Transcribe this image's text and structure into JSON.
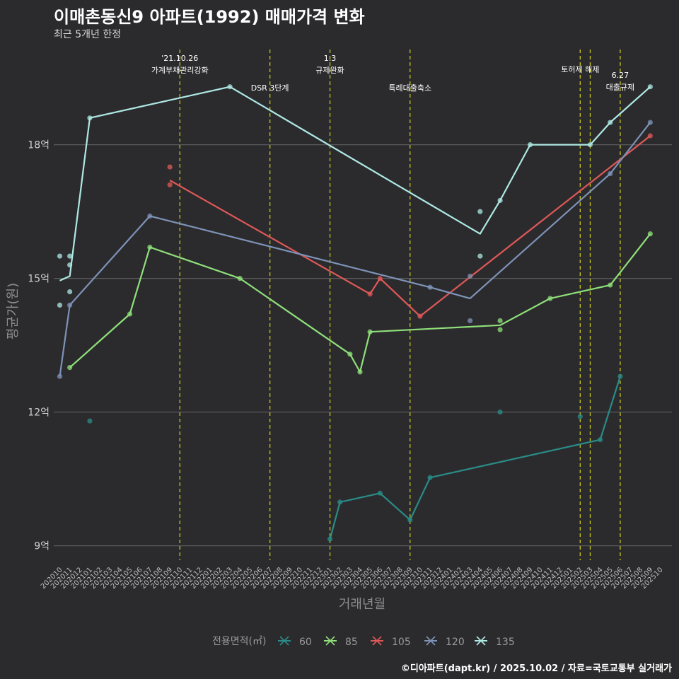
{
  "header": {
    "title": "이매촌동신9 아파트(1992) 매매가격 변화",
    "subtitle": "최근 5개년 한정"
  },
  "footer": {
    "caption": "©디아파트(dapt.kr) / 2025.10.02 / 자료=국토교통부 실거래가"
  },
  "colors": {
    "background": "#2b2b2d",
    "grid": "#5a5a5c",
    "vline": "#c8c820",
    "s60": "#2a8c88",
    "s85": "#8fe07a",
    "s105": "#e05858",
    "s120": "#7e93b8",
    "s135": "#aee8e4"
  },
  "chart_data": {
    "type": "line",
    "title": "이매촌동신9 아파트(1992) 매매가격 변화",
    "xlabel": "거래년월",
    "ylabel": "평균가(원)",
    "ylim": [
      8.6,
      19.9
    ],
    "y_ticks": [
      9,
      12,
      15,
      18
    ],
    "y_tick_labels": [
      "9억",
      "12억",
      "15억",
      "18억"
    ],
    "x_categories": [
      "202010",
      "202011",
      "202012",
      "202101",
      "202102",
      "202103",
      "202104",
      "202105",
      "202106",
      "202107",
      "202108",
      "202109",
      "202110",
      "202111",
      "202112",
      "202201",
      "202202",
      "202203",
      "202204",
      "202205",
      "202206",
      "202207",
      "202208",
      "202209",
      "202210",
      "202211",
      "202212",
      "202301",
      "202302",
      "202303",
      "202304",
      "202305",
      "202306",
      "202307",
      "202308",
      "202309",
      "202310",
      "202311",
      "202312",
      "202401",
      "202402",
      "202403",
      "202404",
      "202405",
      "202406",
      "202407",
      "202408",
      "202409",
      "202410",
      "202411",
      "202412",
      "202501",
      "202502",
      "202503",
      "202504",
      "202505",
      "202506",
      "202507",
      "202508",
      "202509",
      "202510"
    ],
    "legend_title": "전용면적(㎡)",
    "series": [
      {
        "name": "60",
        "color_key": "s60",
        "line": [
          [
            27,
            9.15
          ],
          [
            28,
            9.98
          ],
          [
            32,
            10.18
          ],
          [
            35,
            9.58
          ],
          [
            37,
            10.53
          ],
          [
            54,
            11.38
          ],
          [
            56,
            12.8
          ]
        ],
        "points": [
          [
            3,
            11.8
          ],
          [
            27,
            9.15
          ],
          [
            28,
            9.98
          ],
          [
            32,
            10.18
          ],
          [
            35,
            9.58
          ],
          [
            37,
            10.53
          ],
          [
            44,
            12.0
          ],
          [
            52,
            11.9
          ],
          [
            54,
            11.38
          ],
          [
            56,
            12.8
          ]
        ]
      },
      {
        "name": "85",
        "color_key": "s85",
        "line": [
          [
            1,
            13.0
          ],
          [
            7,
            14.2
          ],
          [
            9,
            15.7
          ],
          [
            18,
            15.0
          ],
          [
            29,
            13.3
          ],
          [
            30,
            12.9
          ],
          [
            31,
            13.8
          ],
          [
            44,
            13.95
          ],
          [
            49,
            14.55
          ],
          [
            55,
            14.85
          ],
          [
            59,
            16.0
          ]
        ],
        "points": [
          [
            1,
            13.0
          ],
          [
            7,
            14.2
          ],
          [
            9,
            15.7
          ],
          [
            18,
            15.0
          ],
          [
            29,
            13.3
          ],
          [
            30,
            12.9
          ],
          [
            31,
            13.8
          ],
          [
            44,
            13.85
          ],
          [
            44,
            14.05
          ],
          [
            49,
            14.55
          ],
          [
            55,
            14.85
          ],
          [
            59,
            16.0
          ]
        ]
      },
      {
        "name": "105",
        "color_key": "s105",
        "line": [
          [
            11,
            17.2
          ],
          [
            31,
            14.65
          ],
          [
            32,
            15.0
          ],
          [
            36,
            14.15
          ],
          [
            59,
            18.2
          ]
        ],
        "points": [
          [
            11,
            17.5
          ],
          [
            11,
            17.1
          ],
          [
            31,
            14.65
          ],
          [
            32,
            15.0
          ],
          [
            36,
            14.15
          ],
          [
            59,
            18.2
          ]
        ]
      },
      {
        "name": "120",
        "color_key": "s120",
        "line": [
          [
            0,
            12.8
          ],
          [
            1,
            14.4
          ],
          [
            9,
            16.4
          ],
          [
            37,
            14.8
          ],
          [
            41,
            14.55
          ],
          [
            55,
            17.35
          ],
          [
            59,
            18.5
          ]
        ],
        "points": [
          [
            0,
            12.8
          ],
          [
            1,
            14.4
          ],
          [
            9,
            16.4
          ],
          [
            37,
            14.8
          ],
          [
            41,
            14.05
          ],
          [
            41,
            15.05
          ],
          [
            55,
            17.35
          ],
          [
            59,
            18.5
          ]
        ]
      },
      {
        "name": "135",
        "color_key": "s135",
        "line": [
          [
            0,
            14.95
          ],
          [
            1,
            15.05
          ],
          [
            3,
            18.6
          ],
          [
            17,
            19.3
          ],
          [
            42,
            16.0
          ],
          [
            44,
            16.75
          ],
          [
            47,
            18.0
          ],
          [
            53,
            18.0
          ],
          [
            55,
            18.5
          ],
          [
            59,
            19.3
          ]
        ],
        "points": [
          [
            0,
            14.4
          ],
          [
            0,
            15.5
          ],
          [
            1,
            14.7
          ],
          [
            1,
            15.3
          ],
          [
            1,
            15.5
          ],
          [
            3,
            18.6
          ],
          [
            17,
            19.3
          ],
          [
            42,
            16.5
          ],
          [
            42,
            15.5
          ],
          [
            44,
            16.75
          ],
          [
            47,
            18.0
          ],
          [
            53,
            18.0
          ],
          [
            55,
            18.5
          ],
          [
            59,
            19.3
          ]
        ]
      }
    ],
    "events": [
      {
        "x": 12.0,
        "lines": [
          "'21.10.26",
          "가계부채관리강화"
        ],
        "row": 0
      },
      {
        "x": 21.0,
        "lines": [
          "DSR 3단계"
        ],
        "row": 2
      },
      {
        "x": 27.0,
        "lines": [
          "1.3",
          "규제완화"
        ],
        "row": 0
      },
      {
        "x": 35.0,
        "lines": [
          "특례대출축소"
        ],
        "row": 2
      },
      {
        "x": 52.0,
        "lines": [
          "토허제 해제"
        ],
        "row": 1
      },
      {
        "x": 53.0,
        "lines": [],
        "row": 1
      },
      {
        "x": 56.0,
        "lines": [
          "6.27",
          "대출규제"
        ],
        "row": 3
      }
    ]
  }
}
